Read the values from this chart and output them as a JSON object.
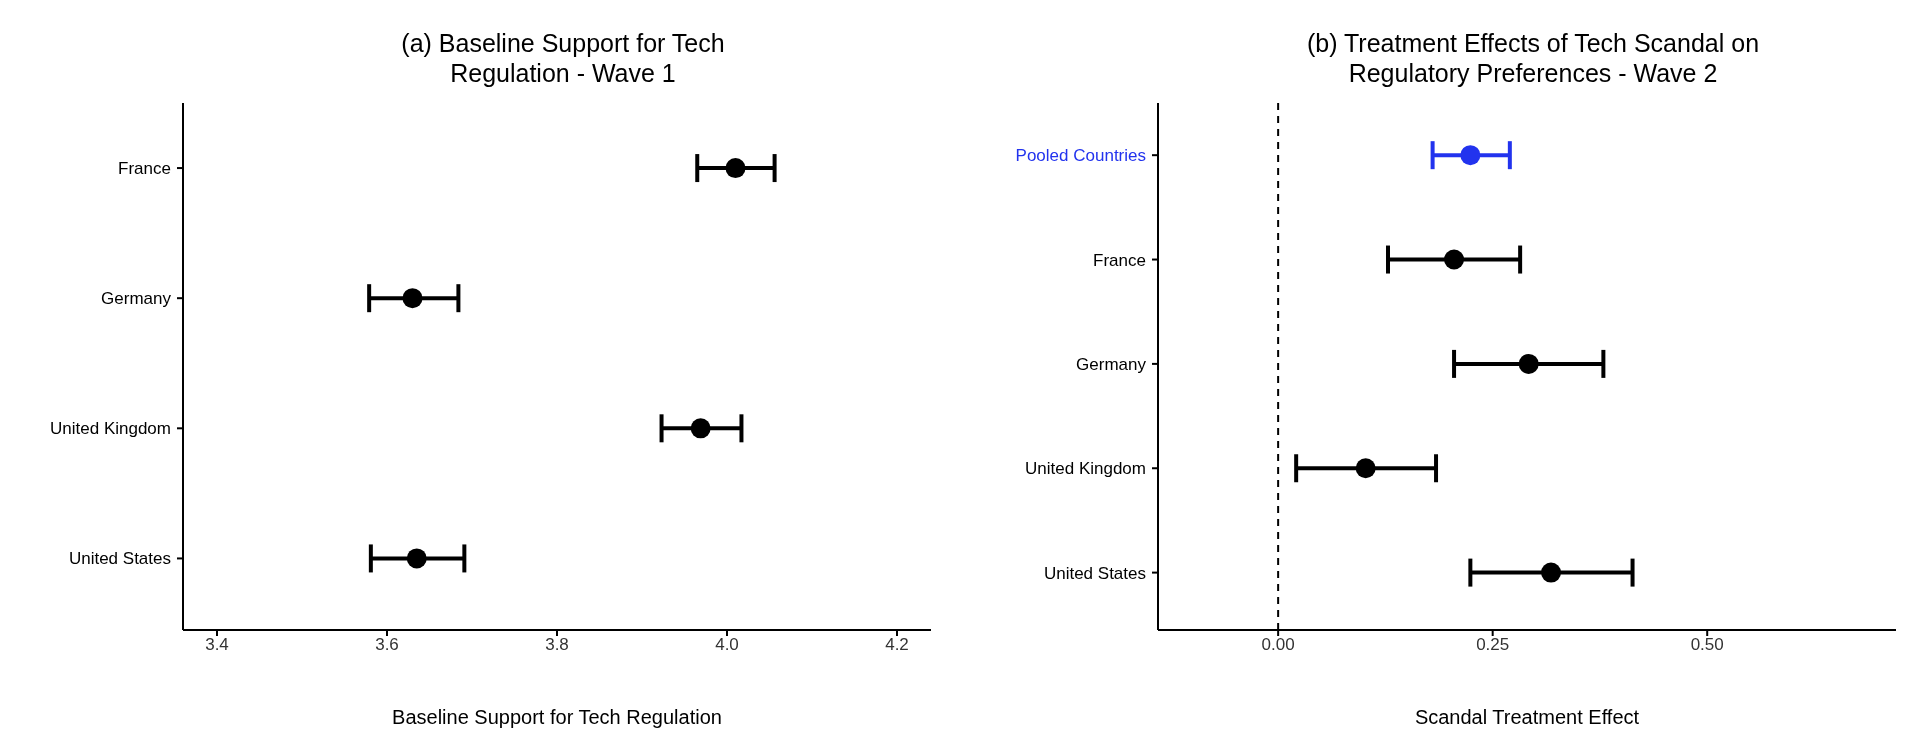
{
  "chart_data": [
    {
      "type": "scatter",
      "orientation": "horizontal",
      "title": "(a) Baseline Support for Tech Regulation - Wave 1",
      "xlabel": "Baseline Support for Tech Regulation",
      "categories": [
        "France",
        "Germany",
        "United Kingdom",
        "United States"
      ],
      "series": [
        {
          "color": "#000000",
          "values": [
            4.01,
            3.63,
            3.969,
            3.635
          ],
          "errors": [
            [
              3.965,
              4.056
            ],
            [
              3.579,
              3.684
            ],
            [
              3.923,
              4.017
            ],
            [
              3.581,
              3.691
            ]
          ]
        }
      ],
      "xlim": [
        3.36,
        4.24
      ],
      "xticks": [
        3.4,
        3.6,
        3.8,
        {
          "value": 4,
          "label": "4.0"
        },
        4.2
      ],
      "marker": "circle",
      "grid": false
    },
    {
      "type": "scatter",
      "orientation": "horizontal",
      "title": "(b) Treatment Effects of Tech Scandal on Regulatory Preferences - Wave 2",
      "xlabel": "Scandal Treatment Effect",
      "categories": [
        "Pooled Countries",
        "France",
        "Germany",
        "United Kingdom",
        "United States"
      ],
      "series": [
        {
          "colors": [
            "#2233ee",
            "#000000",
            "#000000",
            "#000000",
            "#000000"
          ],
          "values": [
            0.224,
            0.205,
            0.292,
            0.102,
            0.318
          ],
          "errors": [
            [
              0.18,
              0.27
            ],
            [
              0.128,
              0.282
            ],
            [
              0.205,
              0.379
            ],
            [
              0.021,
              0.184
            ],
            [
              0.224,
              0.413
            ]
          ]
        }
      ],
      "xlim": [
        -0.14,
        0.72
      ],
      "xticks": [
        {
          "value": 0,
          "label": "0.00"
        },
        {
          "value": 0.25,
          "label": "0.25"
        },
        {
          "value": 0.5,
          "label": "0.50"
        }
      ],
      "ref_lines": [
        {
          "axis": "x",
          "value": 0,
          "line_style": "dashed",
          "color": "#000000"
        }
      ],
      "marker": "circle",
      "grid": false
    }
  ]
}
